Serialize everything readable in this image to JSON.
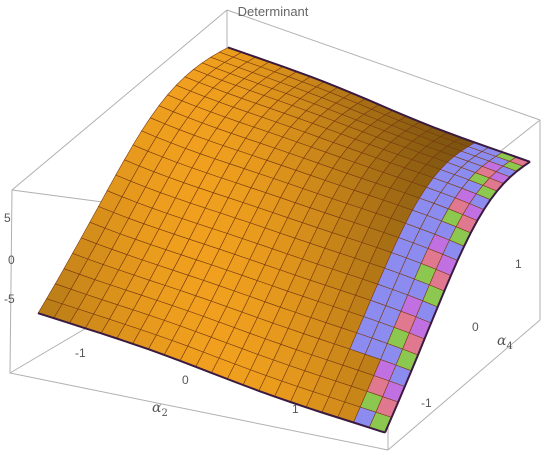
{
  "chart_data": {
    "type": "surface3d",
    "title": "Determinant",
    "z_axis": {
      "ticks": [
        "5",
        "0",
        "-5"
      ],
      "values": [
        5,
        0,
        -5
      ],
      "range": [
        -7,
        7
      ]
    },
    "x_axis": {
      "symbol": "α",
      "subscript": "2",
      "ticks": [
        "-1",
        "0",
        "1"
      ],
      "values": [
        -1,
        0,
        1
      ],
      "range": [
        -1.6,
        1.6
      ]
    },
    "y_axis": {
      "symbol": "α",
      "subscript": "4",
      "ticks": [
        "1",
        "0",
        "-1"
      ],
      "values": [
        1,
        0,
        -1
      ],
      "range": [
        -1.6,
        1.6
      ]
    },
    "surface": {
      "description_values": "det(α2, α4) sampled on a 22 x 22 grid",
      "z_min": -7,
      "z_max": 7
    },
    "colors": {
      "surface_main": "#f0a020",
      "surface_dark": "#c86a10",
      "mesh": "#7a3a10",
      "box": "#b0b0b0",
      "edge": "#3a1a40",
      "band_blue": "#8c8cf0",
      "band_green": "#8cc850",
      "band_pink": "#e07890",
      "band_purple": "#c070e0"
    }
  }
}
